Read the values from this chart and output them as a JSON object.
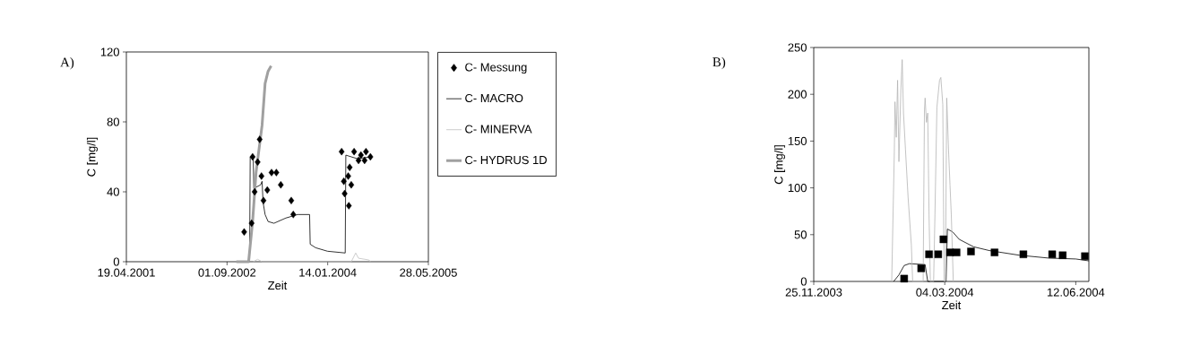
{
  "chart_data": [
    {
      "type": "line",
      "title": "A)",
      "xlabel": "Zeit",
      "ylabel": "C [mg/l]",
      "xlim": [
        "2001-04-19",
        "2005-05-28"
      ],
      "ylim": [
        0,
        120
      ],
      "xticks": [
        {
          "value": "2001-04-19",
          "label": "19.04.2001"
        },
        {
          "value": "2002-09-01",
          "label": "01.09.2002"
        },
        {
          "value": "2004-01-14",
          "label": "14.01.2004"
        },
        {
          "value": "2005-05-28",
          "label": "28.05.2005"
        }
      ],
      "yticks": [
        0,
        40,
        80,
        120
      ],
      "grid": false,
      "legend": "right",
      "series": [
        {
          "name": "C- Messung",
          "type": "scatter",
          "marker": "diamond",
          "color": "#000000",
          "x": [
            "2002-11-25",
            "2003-01-01",
            "2003-01-06",
            "2003-01-16",
            "2003-01-31",
            "2003-02-10",
            "2003-02-19",
            "2003-03-01",
            "2003-03-20",
            "2003-04-10",
            "2003-05-04",
            "2003-05-26",
            "2003-07-17",
            "2003-07-27",
            "2004-03-23",
            "2004-04-03",
            "2004-04-07",
            "2004-04-25",
            "2004-04-28",
            "2004-05-02",
            "2004-05-10",
            "2004-05-24",
            "2004-06-15",
            "2004-06-27",
            "2004-07-15",
            "2004-07-22",
            "2004-08-13"
          ],
          "values": [
            17,
            22,
            60,
            40,
            57,
            70,
            49,
            35,
            41,
            51,
            51,
            44,
            35,
            27,
            63,
            46,
            39,
            49,
            32,
            54,
            44,
            63,
            58,
            61,
            58,
            63,
            60
          ]
        },
        {
          "name": "C- MACRO",
          "color": "#000000",
          "x": [
            "2002-10-31",
            "2002-12-22",
            "2002-12-25",
            "2003-01-09",
            "2003-01-12",
            "2003-02-15",
            "2003-02-22",
            "2003-02-27",
            "2003-03-09",
            "2003-03-24",
            "2003-04-22",
            "2003-06-20",
            "2003-08-18",
            "2003-10-16",
            "2003-10-19",
            "2003-11-15",
            "2004-01-13",
            "2004-04-10",
            "2004-04-13",
            "2004-05-10",
            "2004-06-08",
            "2004-08-21"
          ],
          "values": [
            0,
            0,
            60,
            60,
            42,
            44,
            46,
            34,
            27,
            23,
            22,
            25,
            27,
            27,
            10,
            8,
            6,
            5,
            61,
            60,
            59,
            60
          ]
        },
        {
          "name": "C- MINERVA",
          "color": "#c0c0c0",
          "x": [
            "2003-01-09",
            "2003-01-31",
            "2003-02-22",
            "2004-05-10",
            "2004-06-01",
            "2004-06-15",
            "2004-08-06",
            "2004-08-13"
          ],
          "values": [
            0,
            1.4,
            0,
            0,
            5,
            2,
            1,
            0
          ]
        },
        {
          "name": "C- HYDRUS 1D",
          "color": "#a0a0a0",
          "x": [
            "2002-10-17",
            "2002-12-17",
            "2003-01-06",
            "2003-01-23",
            "2003-02-22",
            "2003-03-09",
            "2003-03-24",
            "2003-04-08"
          ],
          "values": [
            0,
            0,
            23,
            51,
            78,
            102,
            109,
            112
          ]
        }
      ]
    },
    {
      "type": "line",
      "title": "B)",
      "xlabel": "Zeit",
      "ylabel": "C [mg/l]",
      "xlim": [
        "2003-11-25",
        "2004-06-22"
      ],
      "ylim": [
        0,
        250
      ],
      "xticks": [
        {
          "value": "2003-11-25",
          "label": "25.11.2003"
        },
        {
          "value": "2004-03-04",
          "label": "04.03.2004"
        },
        {
          "value": "2004-06-12",
          "label": "12.06.2004"
        }
      ],
      "yticks": [
        0,
        50,
        100,
        150,
        200,
        250
      ],
      "grid": false,
      "series": [
        {
          "type": "scatter",
          "marker": "square",
          "color": "#000000",
          "x": [
            "2004-02-02",
            "2004-02-15",
            "2004-02-21",
            "2004-02-28",
            "2004-03-03",
            "2004-03-08",
            "2004-03-13",
            "2004-03-24",
            "2004-04-11",
            "2004-05-03",
            "2004-05-25",
            "2004-06-02",
            "2004-06-19"
          ],
          "values": [
            3,
            14,
            29,
            29,
            45,
            31,
            31,
            32,
            31,
            29,
            29,
            28,
            27
          ]
        },
        {
          "color": "#000000",
          "x": [
            "2004-01-25",
            "2004-01-29",
            "2004-02-02",
            "2004-02-06",
            "2004-02-18",
            "2004-02-20",
            "2004-03-05",
            "2004-03-06",
            "2004-03-10",
            "2004-03-15",
            "2004-03-26",
            "2004-04-07",
            "2004-04-30",
            "2004-05-22",
            "2004-06-12",
            "2004-06-22"
          ],
          "values": [
            0,
            7,
            17,
            19,
            18,
            0,
            0,
            56,
            53,
            45,
            37,
            33,
            28,
            25,
            24,
            22
          ]
        },
        {
          "color": "#b4b4b4",
          "x": [
            "2004-01-23T12:00",
            "2004-01-25T12:00",
            "2004-01-26",
            "2004-01-27",
            "2004-01-28",
            "2004-01-29",
            "2004-01-30T12:00",
            "2004-01-31T12:00",
            "2004-02-01T12:00",
            "2004-02-03",
            "2004-02-05",
            "2004-02-07T12:00",
            "2004-02-08T12:00",
            "2004-02-16T12:00",
            "2004-02-17T12:00",
            "2004-02-18",
            "2004-02-19",
            "2004-02-20",
            "2004-02-21",
            "2004-02-22",
            "2004-02-24T12:00",
            "2004-02-25T12:00",
            "2004-02-27",
            "2004-02-29",
            "2004-03-01",
            "2004-03-02T12:00",
            "2004-03-03T12:00",
            "2004-03-04T12:00",
            "2004-03-05T12:00",
            "2004-03-07",
            "2004-03-08",
            "2004-03-09",
            "2004-03-10T12:00"
          ],
          "values": [
            0,
            138,
            192,
            154,
            215,
            128,
            205,
            237,
            180,
            141,
            90,
            39,
            0,
            0,
            183,
            196,
            170,
            180,
            71,
            0,
            0,
            71,
            186,
            215,
            218,
            189,
            0,
            0,
            196,
            136,
            103,
            71,
            0
          ]
        }
      ]
    }
  ]
}
